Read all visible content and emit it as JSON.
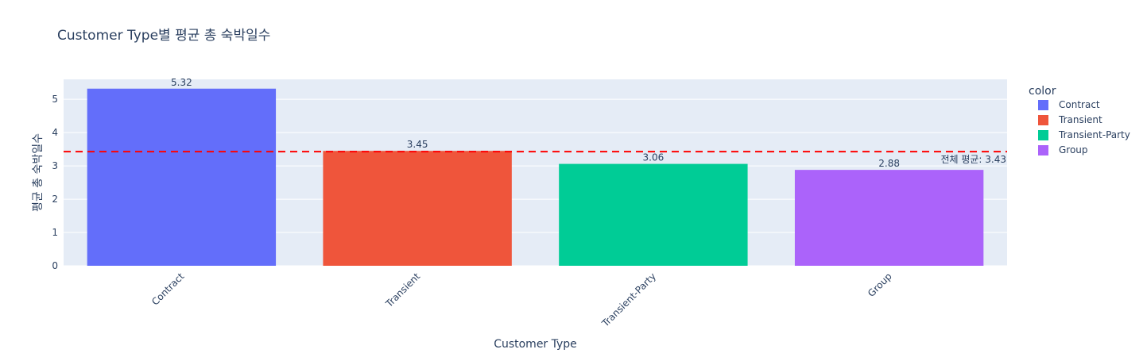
{
  "chart_data": {
    "type": "bar",
    "title": "Customer Type별 평균 총 숙박일수",
    "xlabel": "Customer Type",
    "ylabel": "평균 총 숙박일수",
    "categories": [
      "Contract",
      "Transient",
      "Transient-Party",
      "Group"
    ],
    "values": [
      5.32,
      3.45,
      3.06,
      2.88
    ],
    "value_labels": [
      "5.32",
      "3.45",
      "3.06",
      "2.88"
    ],
    "colors": [
      "#636efa",
      "#EF553B",
      "#00cc96",
      "#ab63fa"
    ],
    "ylim": [
      0,
      5.6
    ],
    "yticks": [
      0,
      1,
      2,
      3,
      4,
      5
    ],
    "ytick_labels": [
      "0",
      "1",
      "2",
      "3",
      "4",
      "5"
    ],
    "grid": true,
    "plot_background": "#E5ECF6",
    "legend": {
      "title": "color",
      "placement": "right",
      "entries": [
        "Contract",
        "Transient",
        "Transient-Party",
        "Group"
      ]
    },
    "reference_line": {
      "value": 3.43,
      "color": "#ff0000",
      "style": "dashed",
      "label": "전체 평균: 3.43"
    }
  }
}
